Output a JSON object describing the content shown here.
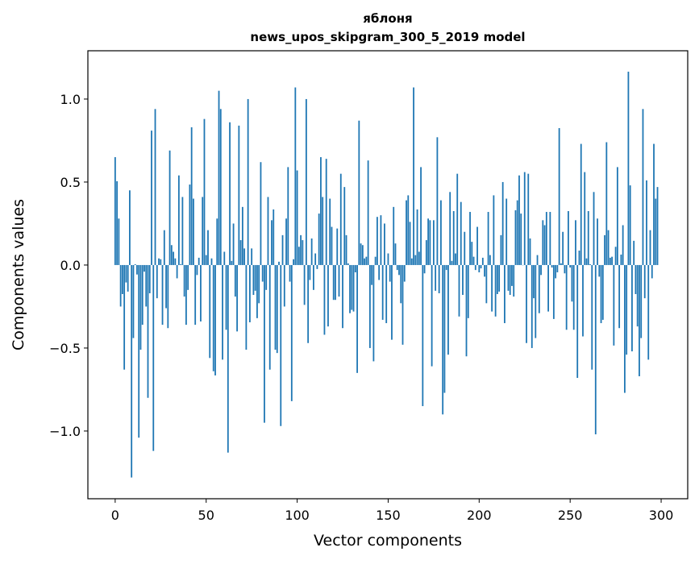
{
  "chart_data": {
    "type": "bar",
    "title": "яблоня",
    "subtitle": "news_upos_skipgram_300_5_2019 model",
    "xlabel": "Vector components",
    "ylabel": "Components values",
    "xlim": [
      -15,
      314.6
    ],
    "ylim": [
      -1.408,
      1.291
    ],
    "xticks": [
      0,
      50,
      100,
      150,
      200,
      250,
      300
    ],
    "xtick_labels": [
      "0",
      "50",
      "100",
      "150",
      "200",
      "250",
      "300"
    ],
    "yticks": [
      -1.0,
      -0.5,
      0.0,
      0.5,
      1.0
    ],
    "ytick_labels": [
      "−1.0",
      "−0.5",
      "0.0",
      "0.5",
      "1.0"
    ],
    "grid": false,
    "bar_color": "#1f77b4",
    "values": [
      0.65,
      0.505,
      0.28,
      -0.25,
      -0.175,
      -0.63,
      -0.105,
      -0.16,
      0.45,
      -1.28,
      -0.44,
      0.005,
      -0.057,
      -1.04,
      -0.51,
      -0.36,
      -0.04,
      -0.25,
      -0.8,
      -0.17,
      0.81,
      -1.12,
      0.94,
      -0.2,
      0.04,
      0.035,
      -0.36,
      0.21,
      -0.26,
      -0.38,
      0.69,
      0.12,
      0.08,
      0.04,
      -0.08,
      0.54,
      0.005,
      0.41,
      -0.19,
      -0.36,
      -0.15,
      0.485,
      0.83,
      0.4,
      -0.36,
      -0.06,
      0.044,
      -0.34,
      0.41,
      0.88,
      0.06,
      0.21,
      -0.56,
      0.04,
      -0.64,
      -0.665,
      0.28,
      1.05,
      0.94,
      -0.57,
      0.08,
      -0.39,
      -1.13,
      0.86,
      0.025,
      0.25,
      -0.19,
      -0.4,
      0.84,
      0.15,
      0.35,
      0.1,
      -0.51,
      1.0,
      -0.345,
      0.1,
      -0.18,
      -0.155,
      -0.32,
      -0.23,
      0.62,
      -0.1,
      -0.95,
      -0.15,
      0.41,
      -0.63,
      0.27,
      0.335,
      -0.51,
      -0.53,
      0.02,
      -0.97,
      0.18,
      -0.25,
      0.28,
      0.59,
      -0.1,
      -0.82,
      0.035,
      1.07,
      0.57,
      0.11,
      0.18,
      0.15,
      -0.24,
      1.0,
      -0.47,
      -0.09,
      0.16,
      -0.15,
      0.07,
      -0.024,
      0.31,
      0.65,
      0.41,
      -0.42,
      0.64,
      -0.37,
      0.4,
      0.23,
      -0.21,
      -0.21,
      0.22,
      -0.19,
      0.55,
      -0.38,
      0.47,
      0.18,
      0.01,
      -0.29,
      -0.27,
      -0.28,
      -0.044,
      -0.65,
      0.87,
      0.13,
      0.12,
      0.04,
      0.05,
      0.63,
      -0.5,
      -0.12,
      -0.58,
      0.05,
      0.29,
      -0.09,
      0.3,
      -0.33,
      0.25,
      -0.35,
      0.07,
      -0.1,
      -0.45,
      0.35,
      0.13,
      -0.03,
      -0.06,
      -0.23,
      -0.48,
      -0.1,
      0.39,
      0.42,
      0.26,
      0.04,
      1.07,
      0.06,
      0.335,
      0.08,
      0.59,
      -0.85,
      -0.05,
      0.15,
      0.28,
      0.27,
      -0.61,
      0.27,
      -0.155,
      0.77,
      -0.17,
      0.39,
      -0.9,
      -0.77,
      -0.03,
      -0.54,
      0.44,
      0.025,
      0.325,
      0.07,
      0.55,
      -0.31,
      0.38,
      -0.18,
      0.2,
      -0.55,
      -0.32,
      0.32,
      0.14,
      0.05,
      -0.03,
      0.23,
      -0.044,
      -0.02,
      0.044,
      -0.07,
      -0.23,
      0.32,
      0.06,
      -0.28,
      0.42,
      -0.31,
      -0.175,
      -0.16,
      0.18,
      0.5,
      -0.35,
      0.4,
      -0.155,
      -0.18,
      -0.126,
      -0.19,
      0.33,
      0.39,
      0.54,
      0.31,
      0.0,
      0.56,
      -0.47,
      0.55,
      0.16,
      -0.5,
      -0.2,
      -0.44,
      0.06,
      -0.29,
      -0.06,
      0.27,
      0.24,
      0.32,
      -0.28,
      0.32,
      -0.015,
      -0.325,
      -0.08,
      -0.044,
      0.825,
      0.01,
      0.2,
      -0.05,
      -0.39,
      0.325,
      -0.015,
      -0.22,
      -0.39,
      0.27,
      -0.68,
      0.087,
      0.73,
      -0.43,
      0.56,
      0.04,
      0.325,
      0.005,
      -0.63,
      0.44,
      -1.02,
      0.28,
      -0.07,
      -0.35,
      -0.33,
      0.18,
      0.74,
      0.21,
      0.044,
      0.05,
      -0.485,
      0.11,
      0.59,
      -0.38,
      0.063,
      0.24,
      -0.77,
      -0.54,
      1.165,
      0.48,
      -0.52,
      0.146,
      -0.175,
      -0.37,
      -0.67,
      -0.44,
      0.94,
      -0.2,
      0.51,
      -0.57,
      0.21,
      -0.08,
      0.73,
      0.4,
      0.47
    ]
  }
}
